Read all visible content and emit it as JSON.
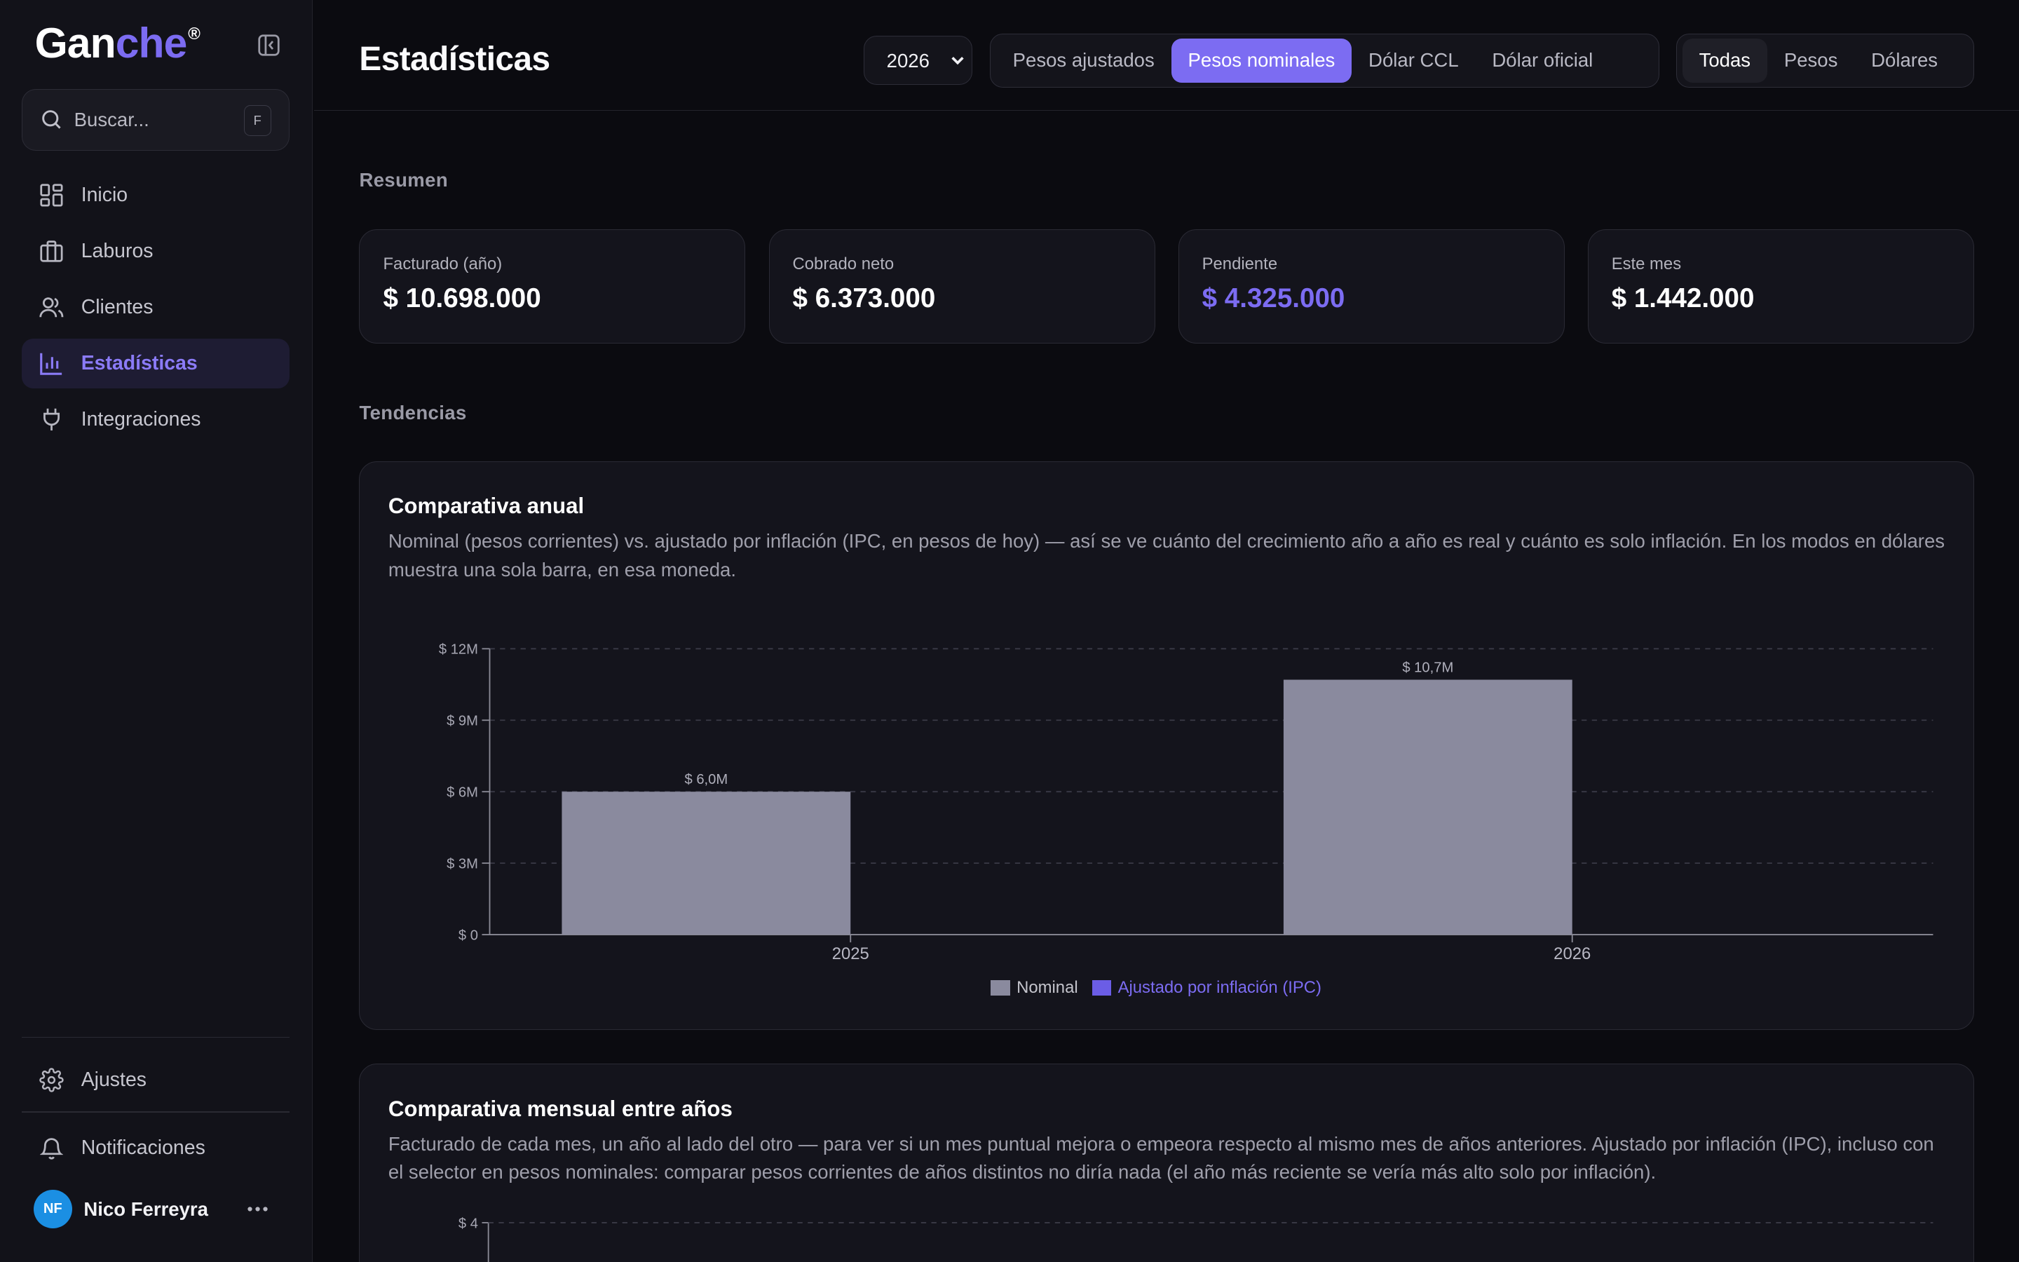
{
  "app": {
    "logo_part1": "Gan",
    "logo_part2": "che",
    "logo_mark": "®",
    "accent_color": "#7c6cf2"
  },
  "sidebar": {
    "search_placeholder": "Buscar...",
    "search_shortcut": "F",
    "items": [
      {
        "label": "Inicio",
        "icon": "dashboard-icon",
        "active": false
      },
      {
        "label": "Laburos",
        "icon": "briefcase-icon",
        "active": false
      },
      {
        "label": "Clientes",
        "icon": "users-icon",
        "active": false
      },
      {
        "label": "Estadísticas",
        "icon": "bar-chart-icon",
        "active": true
      },
      {
        "label": "Integraciones",
        "icon": "plug-icon",
        "active": false
      }
    ],
    "settings_label": "Ajustes",
    "notifications_label": "Notificaciones",
    "user": {
      "initials": "NF",
      "name": "Nico Ferreyra",
      "avatar_color": "#1b8fe3"
    }
  },
  "header": {
    "title": "Estadísticas",
    "year_selected": "2026",
    "currency_modes": [
      "Pesos ajustados",
      "Pesos nominales",
      "Dólar CCL",
      "Dólar oficial"
    ],
    "currency_mode_active": "Pesos nominales",
    "filter_modes": [
      "Todas",
      "Pesos",
      "Dólares"
    ],
    "filter_mode_active": "Todas"
  },
  "summary": {
    "section_label": "Resumen",
    "cards": [
      {
        "label": "Facturado (año)",
        "value": "$ 10.698.000",
        "highlight": false
      },
      {
        "label": "Cobrado neto",
        "value": "$ 6.373.000",
        "highlight": false
      },
      {
        "label": "Pendiente",
        "value": "$ 4.325.000",
        "highlight": true
      },
      {
        "label": "Este mes",
        "value": "$ 1.442.000",
        "highlight": false
      }
    ]
  },
  "trends": {
    "section_label": "Tendencias",
    "annual_card": {
      "title": "Comparativa anual",
      "description": "Nominal (pesos corrientes) vs. ajustado por inflación (IPC, en pesos de hoy) — así se ve cuánto del crecimiento año a año es real y cuánto es solo inflación. En los modos en dólares muestra una sola barra, en esa moneda."
    },
    "monthly_card": {
      "title": "Comparativa mensual entre años",
      "description": "Facturado de cada mes, un año al lado del otro — para ver si un mes puntual mejora o empeora respecto al mismo mes de años anteriores. Ajustado por inflación (IPC), incluso con el selector en pesos nominales: comparar pesos corrientes de años distintos no diría nada (el año más reciente se vería más alto solo por inflación).",
      "first_tick": "$ 4"
    }
  },
  "chart_data": {
    "type": "bar",
    "title": "Comparativa anual",
    "categories": [
      "2025",
      "2026"
    ],
    "series": [
      {
        "name": "Nominal",
        "values": [
          6.0,
          10.7
        ],
        "color": "#8a8a9e",
        "value_labels": [
          "$ 6,0M",
          "$ 10,7M"
        ]
      },
      {
        "name": "Ajustado por inflación (IPC)",
        "values": [
          null,
          null
        ],
        "color": "#6b5de6"
      }
    ],
    "ylim": [
      0,
      12
    ],
    "yticks": [
      0,
      3,
      6,
      9,
      12
    ],
    "ytick_labels": [
      "$ 0",
      "$ 3M",
      "$ 6M",
      "$ 9M",
      "$ 12M"
    ],
    "grid": true,
    "legend_position": "bottom-center"
  }
}
